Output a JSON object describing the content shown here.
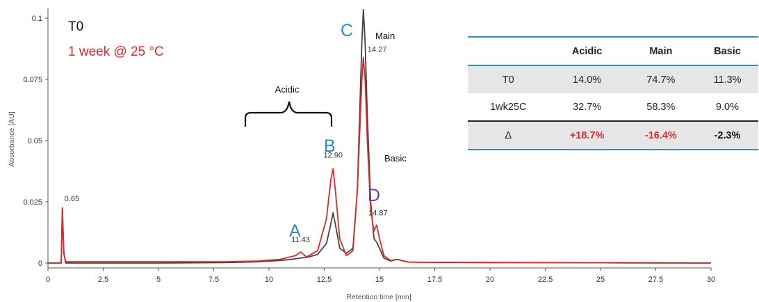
{
  "chart_data": {
    "type": "line",
    "xlabel": "Retention time [min]",
    "ylabel": "Absorbance [AU]",
    "xlim": [
      0,
      30
    ],
    "ylim": [
      -0.002,
      0.104
    ],
    "x_ticks": [
      "0",
      "2.5",
      "5",
      "7.5",
      "10",
      "12.5",
      "15",
      "17.5",
      "20",
      "22.5",
      "25",
      "27.5",
      "30"
    ],
    "y_ticks": [
      {
        "value": 0,
        "label": "0"
      },
      {
        "value": 0.025,
        "label": "0.025"
      },
      {
        "value": 0.05,
        "label": "0.05"
      },
      {
        "value": 0.075,
        "label": "0.075"
      },
      {
        "value": 0.1,
        "label": "0.1"
      }
    ],
    "grid": false,
    "legend": {
      "placement": "top-left",
      "entries": [
        {
          "label": "T0",
          "color": "#111111"
        },
        {
          "label": "1 week @ 25 °C",
          "color": "#e0262b"
        }
      ]
    },
    "series": [
      {
        "name": "T0",
        "color": "#444444",
        "x": [
          0,
          0.6,
          0.65,
          0.72,
          0.8,
          2,
          5,
          8,
          9.5,
          10.5,
          11,
          11.43,
          11.8,
          12.2,
          12.6,
          12.8,
          12.9,
          13.0,
          13.2,
          13.5,
          13.8,
          14.0,
          14.2,
          14.27,
          14.35,
          14.45,
          14.6,
          14.75,
          14.87,
          15.0,
          15.2,
          15.5,
          15.8,
          16.0,
          16.3,
          17,
          20,
          25,
          30
        ],
        "y": [
          0,
          0,
          0.022,
          0.004,
          0,
          0,
          0,
          0.0002,
          0.0005,
          0.001,
          0.0015,
          0.002,
          0.0025,
          0.0035,
          0.008,
          0.016,
          0.0205,
          0.016,
          0.006,
          0.004,
          0.006,
          0.03,
          0.09,
          0.1035,
          0.09,
          0.06,
          0.025,
          0.01,
          0.0085,
          0.006,
          0.002,
          0.0008,
          0.0015,
          0.001,
          0.0004,
          0.0003,
          0.0002,
          0.0001,
          0
        ]
      },
      {
        "name": "1 week @ 25 °C",
        "color": "#e0262b",
        "x": [
          0,
          0.6,
          0.65,
          0.72,
          0.8,
          2,
          5,
          8,
          9.5,
          10.5,
          11.2,
          11.43,
          11.7,
          12.2,
          12.6,
          12.8,
          12.9,
          13.0,
          13.2,
          13.5,
          13.8,
          14.0,
          14.2,
          14.27,
          14.35,
          14.45,
          14.6,
          14.75,
          14.87,
          15.0,
          15.2,
          15.5,
          15.8,
          16.0,
          16.3,
          17,
          20,
          25,
          30
        ],
        "y": [
          0,
          0,
          0.0225,
          0.004,
          0.0005,
          0.0005,
          0.0005,
          0.0005,
          0.0008,
          0.0015,
          0.003,
          0.0045,
          0.0025,
          0.005,
          0.018,
          0.034,
          0.0385,
          0.03,
          0.01,
          0.003,
          0.005,
          0.03,
          0.075,
          0.084,
          0.075,
          0.05,
          0.022,
          0.013,
          0.0155,
          0.01,
          0.003,
          0.001,
          0.0015,
          0.001,
          0.0004,
          0.0003,
          0.0002,
          0.0001,
          0
        ]
      }
    ],
    "peak_labels": [
      {
        "x": 0.65,
        "y": 0.0225,
        "text": "0.65"
      },
      {
        "x": 11.43,
        "y": 0.0045,
        "text": "11.43"
      },
      {
        "x": 12.9,
        "y": 0.0385,
        "text": "12.90"
      },
      {
        "x": 14.27,
        "y": 0.084,
        "text": "14.27"
      },
      {
        "x": 14.87,
        "y": 0.0155,
        "text": "14.87"
      }
    ],
    "peak_letters": [
      {
        "text": "A",
        "color": "#2a8fc4"
      },
      {
        "text": "B",
        "color": "#2a8fc4"
      },
      {
        "text": "C",
        "color": "#2a8fc4"
      },
      {
        "text": "D",
        "color": "#6a3fa0"
      }
    ],
    "annotations": [
      "Acidic",
      "Main",
      "Basic"
    ]
  },
  "table": {
    "headers": [
      "",
      "Acidic",
      "Main",
      "Basic"
    ],
    "rows": [
      [
        "T0",
        "14.0%",
        "74.7%",
        "11.3%"
      ],
      [
        "1wk25C",
        "32.7%",
        "58.3%",
        "9.0%"
      ],
      [
        "Δ",
        "+18.7%",
        "-16.4%",
        "-2.3%"
      ]
    ]
  }
}
